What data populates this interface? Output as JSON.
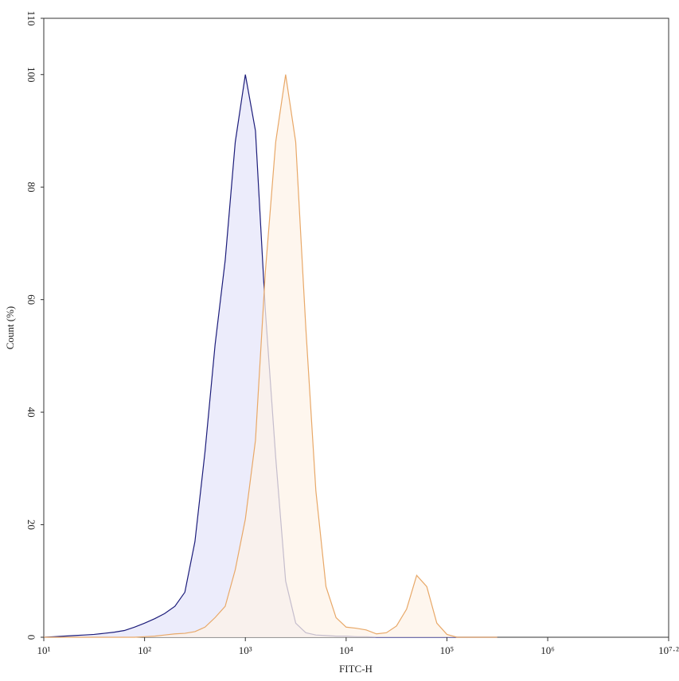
{
  "chart_data": {
    "type": "area",
    "xlabel": "FITC-H",
    "ylabel": "Count (%)",
    "xscale": "log",
    "x": [
      10,
      12.6,
      15.8,
      20,
      25.1,
      31.6,
      39.8,
      50.1,
      63.1,
      79.4,
      100,
      126,
      158,
      200,
      251,
      316,
      398,
      501,
      631,
      794,
      1000,
      1260,
      1580,
      2000,
      2510,
      3160,
      3980,
      5010,
      6310,
      7940,
      10000,
      12600,
      15800,
      20000,
      25100,
      31600,
      39800,
      50100,
      63100,
      79400,
      100000,
      126000,
      158000,
      200000,
      251000,
      316000
    ],
    "series": [
      {
        "color": "#1c1c7a",
        "fill": "#e6e6fa",
        "values": [
          0,
          0.1,
          0.2,
          0.3,
          0.4,
          0.5,
          0.7,
          0.9,
          1.2,
          1.8,
          2.5,
          3.3,
          4.2,
          5.5,
          8,
          17,
          33,
          52,
          67,
          88,
          100,
          90,
          58,
          32,
          10,
          2.5,
          0.8,
          0.4,
          0.3,
          0.2,
          0.2,
          0.1,
          0.1,
          0,
          0,
          0,
          0,
          0,
          0,
          0,
          0,
          0,
          0,
          0,
          0,
          0
        ]
      },
      {
        "color": "#e8a868",
        "fill": "#fdf3e8",
        "values": [
          0,
          0,
          0,
          0,
          0,
          0,
          0,
          0,
          0,
          0,
          0.1,
          0.2,
          0.4,
          0.6,
          0.7,
          1.0,
          1.8,
          3.5,
          5.5,
          12,
          21,
          35,
          65,
          88,
          100,
          88,
          55,
          26,
          9,
          3.5,
          1.8,
          1.6,
          1.3,
          0.6,
          0.8,
          2,
          5,
          11,
          9,
          2.5,
          0.5,
          0,
          0,
          0,
          0,
          0
        ]
      }
    ],
    "xlim": [
      10,
      15848931.92
    ],
    "xticks": [
      {
        "value": 10,
        "label": "10¹"
      },
      {
        "value": 100,
        "label": "10²"
      },
      {
        "value": 1000,
        "label": "10³"
      },
      {
        "value": 10000,
        "label": "10⁴"
      },
      {
        "value": 100000,
        "label": "10⁵"
      },
      {
        "value": 1000000,
        "label": "10⁶"
      },
      {
        "value": 15848931.92,
        "label": "10⁷·²"
      }
    ],
    "ylim": [
      0,
      110
    ],
    "yticks": [
      0,
      20,
      40,
      60,
      80,
      100,
      110
    ]
  }
}
